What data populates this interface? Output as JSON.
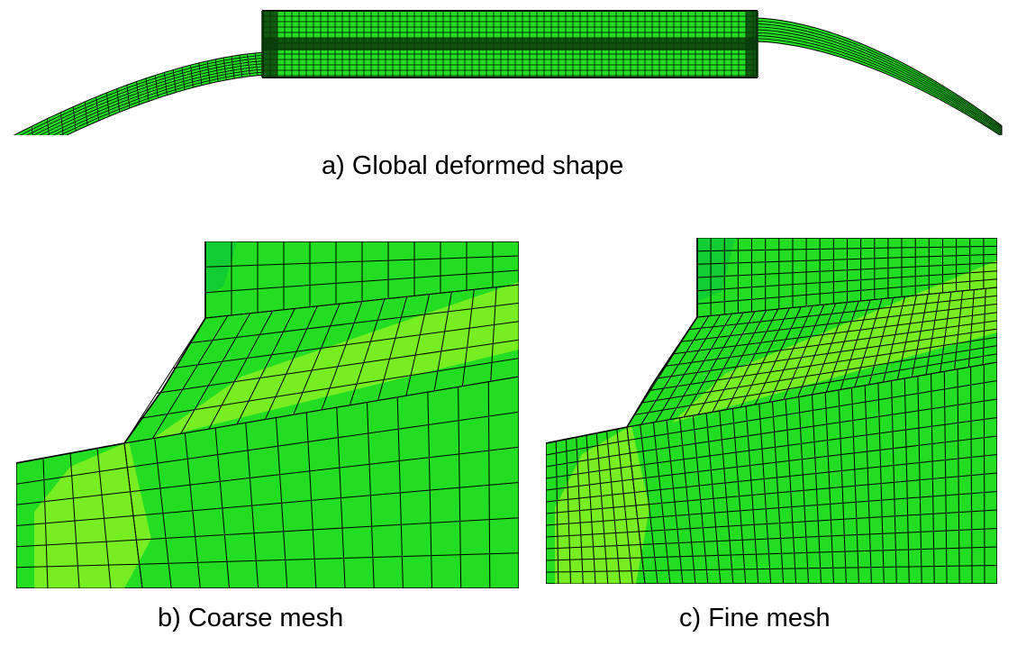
{
  "figure": {
    "panels": [
      {
        "id": "global",
        "caption": "a) Global deformed shape"
      },
      {
        "id": "coarse",
        "caption": "b) Coarse mesh"
      },
      {
        "id": "fine",
        "caption": "c) Fine mesh"
      }
    ]
  },
  "colors": {
    "mesh_fill": "#22dd22",
    "mesh_fill_light": "#77ee22",
    "mesh_fill_dark": "#11cc33",
    "mesh_lines": "#000000",
    "background": "#ffffff"
  }
}
